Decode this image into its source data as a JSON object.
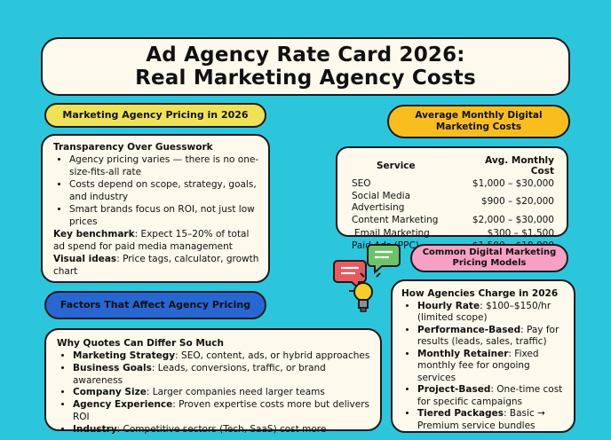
{
  "title": {
    "line1": "Ad Agency Rate Card 2026:",
    "line2": "Real Marketing Agency Costs"
  },
  "pricing_pill": "Marketing Agency Pricing in 2026",
  "monthly_pill": {
    "line1": "Average Monthly Digital",
    "line2": "Marketing Costs"
  },
  "factors_pill": "Factors That Affect Agency Pricing",
  "models_pill": {
    "line1": "Common Digital Marketing",
    "line2": "Pricing Models"
  },
  "transparency": {
    "heading": "Transparency Over Guesswork",
    "bullets": [
      "Agency pricing varies — there is no one-size-fits-all rate",
      "Costs depend on scope, strategy, goals, and industry",
      "Smart brands focus on ROI, not just low prices"
    ],
    "benchmark_label": "Key benchmark",
    "benchmark_text": ": Expect 15–20% of total ad spend for paid media management",
    "visual_label": "Visual ideas",
    "visual_text": ": Price tags, calculator, growth chart"
  },
  "cost_table": {
    "headers": [
      "Service",
      "Avg. Monthly Cost"
    ],
    "rows": [
      [
        "SEO",
        "$1,000 – $30,000"
      ],
      [
        "Social Media Advertising",
        "$900 – $20,000"
      ],
      [
        "Content Marketing",
        "$2,000 – $30,000"
      ],
      [
        "Email Marketing",
        "$300 – $1,500"
      ],
      [
        "Paid Ads (PPC)",
        "$1,500 – $10,000"
      ]
    ]
  },
  "why": {
    "heading": "Why Quotes Can Differ So Much",
    "items": [
      {
        "label": "Marketing Strategy",
        "text": ": SEO, content, ads, or hybrid approaches"
      },
      {
        "label": "Business Goals",
        "text": ": Leads, conversions, traffic, or brand awareness"
      },
      {
        "label": "Company Size",
        "text": ": Larger companies need larger teams"
      },
      {
        "label": "Agency Experience",
        "text": ": Proven expertise costs more but delivers ROI"
      },
      {
        "label": "Industry",
        "text": ": Competitive sectors (Tech, SaaS) cost more"
      }
    ]
  },
  "how": {
    "heading": "How Agencies Charge in 2026",
    "items": [
      {
        "label": "Hourly Rate",
        "text": ": $100–$150/hr (limited scope)"
      },
      {
        "label": "Performance-Based",
        "text": ": Pay for results (leads, sales, traffic)"
      },
      {
        "label": "Monthly Retainer",
        "text": ": Fixed monthly fee for ongoing services"
      },
      {
        "label": "Project-Based",
        "text": ": One-time cost for specific campaigns"
      },
      {
        "label": "Tiered Packages",
        "text": ": Basic → Premium service bundles"
      }
    ]
  },
  "colors": {
    "background": "#2cc6dc",
    "card": "#fdf9ec",
    "yellow_pill": "#efe257",
    "orange_pill": "#f9be1e",
    "blue_pill": "#2867d3",
    "pink_pill": "#f6a1c4"
  },
  "icons": [
    "chat-bubble-red-icon",
    "chat-bubble-green-icon",
    "lightbulb-icon"
  ]
}
